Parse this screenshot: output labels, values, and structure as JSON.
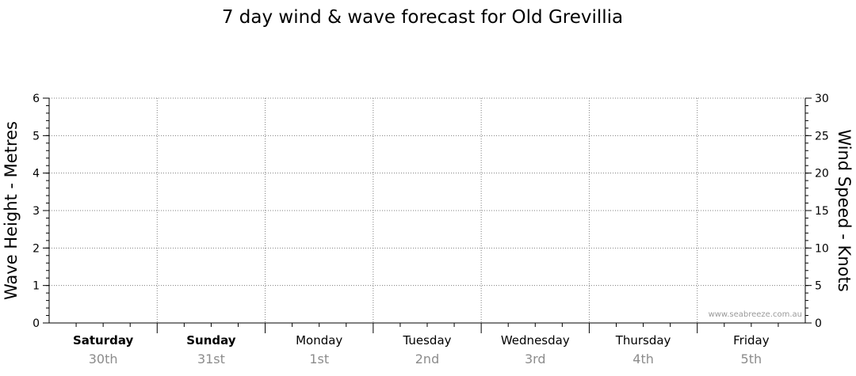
{
  "chart_data": {
    "type": "line",
    "title": "7 day wind & wave forecast for Old Grevillia",
    "y_left": {
      "label": "Wave Height - Metres",
      "range": [
        0,
        6
      ],
      "ticks": [
        "0",
        "1",
        "2",
        "3",
        "4",
        "5",
        "6"
      ]
    },
    "y_right": {
      "label": "Wind Speed - Knots",
      "range": [
        0,
        30
      ],
      "ticks": [
        "0",
        "5",
        "10",
        "15",
        "20",
        "25",
        "30"
      ]
    },
    "days": [
      {
        "name": "Saturday",
        "date": "30th",
        "bold": true
      },
      {
        "name": "Sunday",
        "date": "31st",
        "bold": true
      },
      {
        "name": "Monday",
        "date": "1st",
        "bold": false
      },
      {
        "name": "Tuesday",
        "date": "2nd",
        "bold": false
      },
      {
        "name": "Wednesday",
        "date": "3rd",
        "bold": false
      },
      {
        "name": "Thursday",
        "date": "4th",
        "bold": false
      },
      {
        "name": "Friday",
        "date": "5th",
        "bold": false
      }
    ],
    "series": [],
    "grid": true,
    "watermark": "www.seabreeze.com.au"
  }
}
